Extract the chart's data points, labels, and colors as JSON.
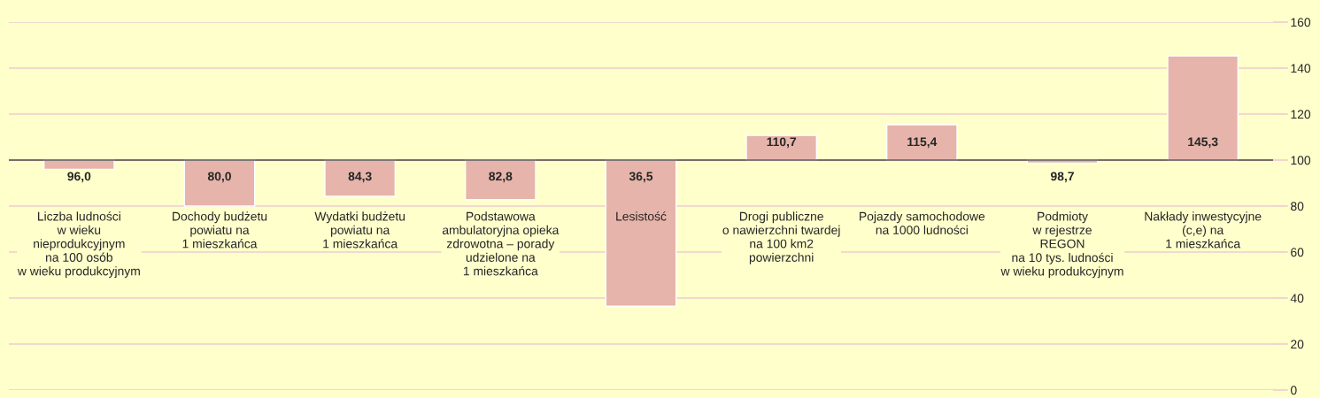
{
  "chart_data": {
    "type": "bar",
    "categories": [
      "Liczba ludności\nw wieku\nnieprodukcyjnym\nna 100 osób\nw wieku produkcyjnym",
      "Dochody budżetu\npowiatu na\n1 mieszkańca",
      "Wydatki budżetu\npowiatu na\n1 mieszkańca",
      "Podstawowa\nambulatoryjna opieka\nzdrowotna – porady\nudzielone na\n1 mieszkańca",
      "Lesistość",
      "Drogi publiczne\no nawierzchni twardej\nna 100 km2\npowierzchni",
      "Pojazdy samochodowe\nna 1000 ludności",
      "Podmioty\nw rejestrze\nREGON\nna 10 tys. ludności\nw wieku produkcyjnym",
      "Nakłady inwestycyjne\n(c,e) na\n1 mieszkańca"
    ],
    "base": [
      100,
      100,
      100,
      100,
      100,
      100,
      100,
      100,
      100
    ],
    "values": [
      -4.0,
      -20.0,
      -15.7,
      -17.2,
      -63.5,
      10.7,
      15.4,
      -1.3,
      45.3
    ],
    "value_labels": [
      "96,0",
      "80,0",
      "84,3",
      "82,8",
      "36,5",
      "110,7",
      "115,4",
      "98,7",
      "145,3"
    ],
    "color": "#e6b4aa",
    "ylim": [
      0,
      160
    ],
    "yticks": [
      0,
      20,
      40,
      60,
      80,
      100,
      120,
      140,
      160
    ],
    "grid": "y",
    "ref_lines": [
      {
        "axis": "y",
        "value": 100,
        "color": "#000000"
      }
    ]
  }
}
